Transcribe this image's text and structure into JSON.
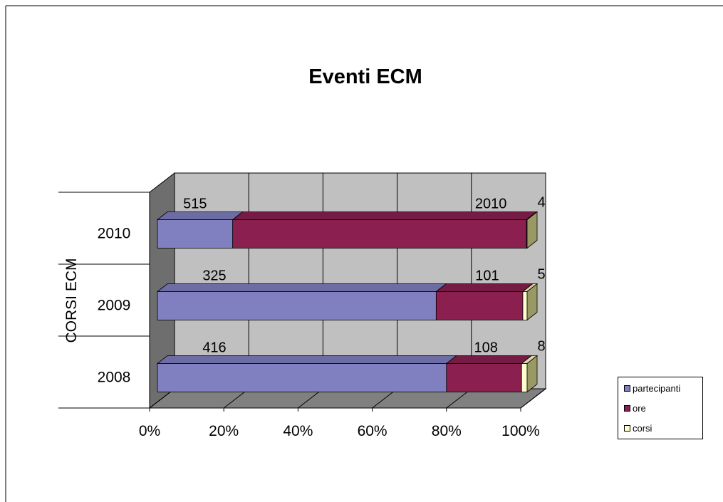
{
  "chart_data": {
    "type": "bar",
    "orientation": "horizontal",
    "stacking": "percent",
    "style": "3d",
    "title": "Eventi ECM",
    "ylabel": "CORSI ECM",
    "xlabel": "",
    "categories": [
      "2008",
      "2009",
      "2010"
    ],
    "series": [
      {
        "name": "partecipanti",
        "values": [
          416,
          325,
          515
        ]
      },
      {
        "name": "ore",
        "values": [
          108,
          101,
          2010
        ]
      },
      {
        "name": "corsi",
        "values": [
          8,
          5,
          4
        ]
      }
    ],
    "xticks": [
      "0%",
      "20%",
      "40%",
      "60%",
      "80%",
      "100%"
    ],
    "xlim": [
      0,
      100
    ],
    "grid": true,
    "legend": "right"
  },
  "colors": {
    "partecipanti": "#8080C0",
    "ore": "#8B2050",
    "corsi": "#FFFFCC",
    "plot_back": "#C0C0C0",
    "floor": "#808080"
  }
}
